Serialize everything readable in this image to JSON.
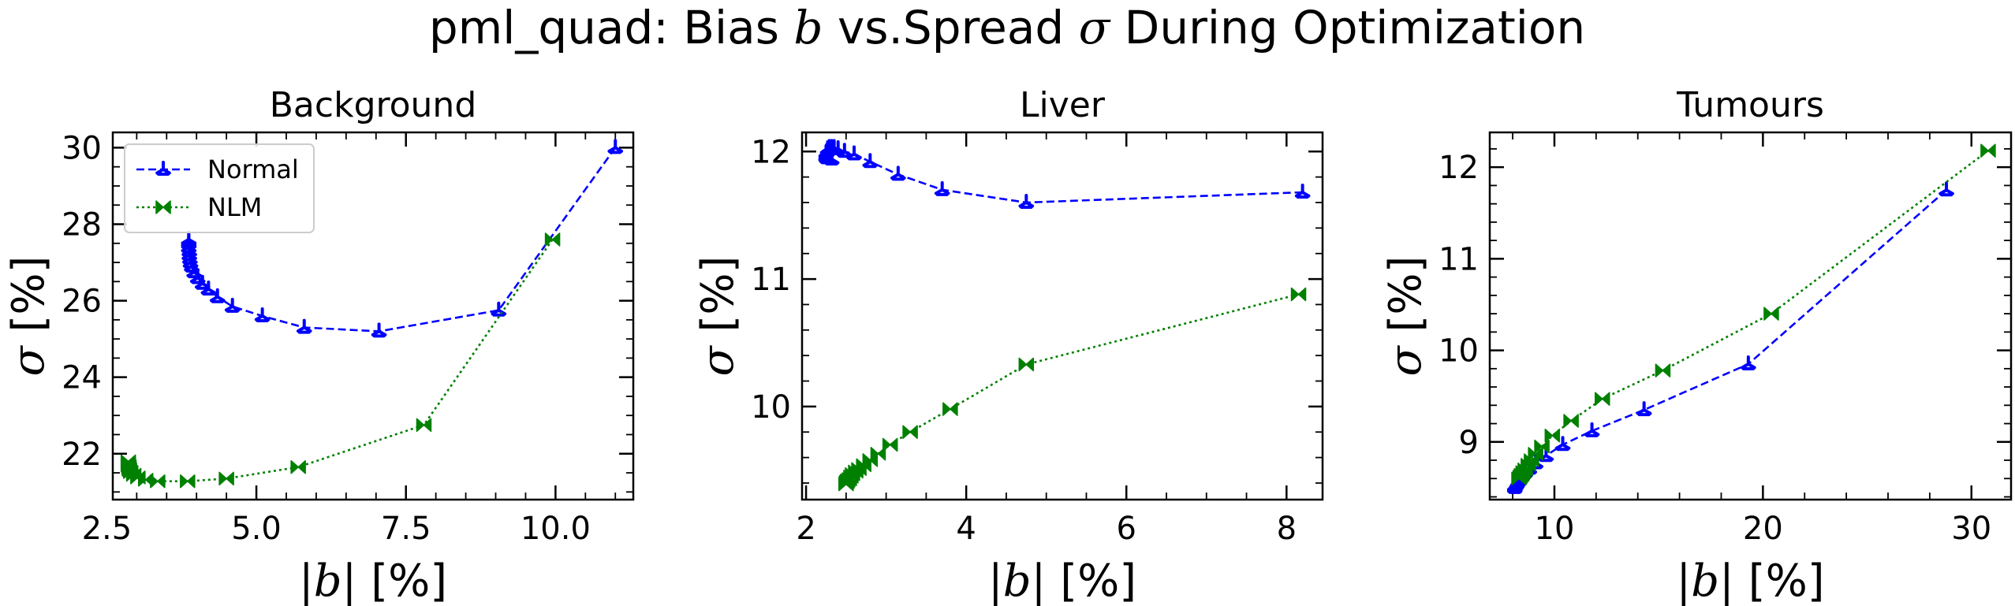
{
  "figure": {
    "title_prefix": "pml_quad: Bias ",
    "title_b": "b",
    "title_middle": " vs.Spread ",
    "title_sigma": "σ",
    "title_suffix": " During Optimization"
  },
  "colors": {
    "normal": "#0000ff",
    "nlm": "#008000"
  },
  "chart_data": [
    {
      "type": "line",
      "title": "Background",
      "xlabel": "|b| [%]",
      "ylabel": "σ [%]",
      "xlim": [
        2.6,
        11.3
      ],
      "ylim": [
        20.8,
        30.4
      ],
      "xticks": [
        2.5,
        5.0,
        7.5,
        10.0
      ],
      "xtick_labels": [
        "2.5",
        "5.0",
        "7.5",
        "10.0"
      ],
      "yticks": [
        22,
        24,
        26,
        28,
        30
      ],
      "ytick_labels": [
        "22",
        "24",
        "26",
        "28",
        "30"
      ],
      "legend_position": "upper-left",
      "series": [
        {
          "name": "Normal",
          "style": "dashed",
          "marker": "tri_up",
          "x": [
            11.0,
            9.05,
            7.05,
            5.8,
            5.1,
            4.6,
            4.35,
            4.2,
            4.1,
            4.02,
            3.96,
            3.92,
            3.9,
            3.89,
            3.88,
            3.88,
            3.87,
            3.87,
            3.87,
            3.87
          ],
          "y": [
            30.0,
            25.75,
            25.2,
            25.3,
            25.6,
            25.85,
            26.1,
            26.3,
            26.45,
            26.6,
            26.75,
            26.9,
            27.0,
            27.1,
            27.2,
            27.3,
            27.4,
            27.5,
            27.55,
            27.6
          ]
        },
        {
          "name": "NLM",
          "style": "dotted",
          "marker": "bowtie",
          "x": [
            9.95,
            7.8,
            5.7,
            4.5,
            3.85,
            3.35,
            3.15,
            3.02,
            2.95,
            2.9,
            2.88,
            2.87,
            2.87,
            2.86,
            2.86,
            2.86,
            2.86
          ],
          "y": [
            27.6,
            22.75,
            21.65,
            21.35,
            21.28,
            21.28,
            21.32,
            21.38,
            21.45,
            21.52,
            21.58,
            21.63,
            21.67,
            21.7,
            21.73,
            21.76,
            21.8
          ]
        }
      ]
    },
    {
      "type": "line",
      "title": "Liver",
      "xlabel": "|b| [%]",
      "ylabel": "σ [%]",
      "xlim": [
        1.95,
        8.45
      ],
      "ylim": [
        9.27,
        12.15
      ],
      "xticks": [
        2,
        4,
        6,
        8
      ],
      "xtick_labels": [
        "2",
        "4",
        "6",
        "8"
      ],
      "yticks": [
        10,
        11,
        12
      ],
      "ytick_labels": [
        "10",
        "11",
        "12"
      ],
      "series": [
        {
          "name": "Normal",
          "style": "dashed",
          "marker": "tri_up",
          "x": [
            8.2,
            4.75,
            3.7,
            3.15,
            2.8,
            2.6,
            2.48,
            2.4,
            2.35,
            2.32,
            2.29,
            2.27,
            2.26,
            2.25,
            2.25,
            2.25,
            2.26,
            2.28,
            2.32
          ],
          "y": [
            11.68,
            11.6,
            11.7,
            11.82,
            11.92,
            11.98,
            12.0,
            12.02,
            12.03,
            12.03,
            12.03,
            12.02,
            12.0,
            11.99,
            11.97,
            11.96,
            11.95,
            11.95,
            11.94
          ]
        },
        {
          "name": "NLM",
          "style": "dotted",
          "marker": "bowtie",
          "x": [
            8.15,
            4.75,
            3.8,
            3.3,
            3.05,
            2.9,
            2.8,
            2.72,
            2.66,
            2.62,
            2.58,
            2.56,
            2.54,
            2.52,
            2.51,
            2.5,
            2.5
          ],
          "y": [
            10.88,
            10.33,
            9.98,
            9.8,
            9.7,
            9.63,
            9.58,
            9.54,
            9.51,
            9.49,
            9.47,
            9.45,
            9.43,
            9.42,
            9.41,
            9.4,
            9.39
          ]
        }
      ]
    },
    {
      "type": "line",
      "title": "Tumours",
      "xlabel": "|b| [%]",
      "ylabel": "σ [%]",
      "xlim": [
        6.9,
        31.9
      ],
      "ylim": [
        8.37,
        12.38
      ],
      "xticks": [
        10,
        20,
        30
      ],
      "xtick_labels": [
        "10",
        "20",
        "30"
      ],
      "yticks": [
        9,
        10,
        11,
        12
      ],
      "ytick_labels": [
        "9",
        "10",
        "11",
        "12"
      ],
      "series": [
        {
          "name": "Normal",
          "style": "dashed",
          "marker": "tri_up",
          "x": [
            28.8,
            19.3,
            14.3,
            11.8,
            10.4,
            9.6,
            9.1,
            8.8,
            8.6,
            8.45,
            8.35,
            8.25,
            8.2,
            8.15,
            8.1,
            8.1
          ],
          "y": [
            11.75,
            9.85,
            9.35,
            9.12,
            8.97,
            8.85,
            8.77,
            8.71,
            8.67,
            8.63,
            8.6,
            8.57,
            8.55,
            8.53,
            8.52,
            8.5
          ]
        },
        {
          "name": "NLM",
          "style": "dotted",
          "marker": "bowtie",
          "x": [
            30.8,
            20.4,
            15.2,
            12.3,
            10.8,
            9.9,
            9.4,
            9.1,
            8.9,
            8.75,
            8.6,
            8.5,
            8.42,
            8.36,
            8.3
          ],
          "y": [
            12.18,
            10.4,
            9.78,
            9.47,
            9.23,
            9.07,
            8.95,
            8.87,
            8.8,
            8.75,
            8.7,
            8.67,
            8.64,
            8.62,
            8.6
          ]
        }
      ]
    }
  ]
}
